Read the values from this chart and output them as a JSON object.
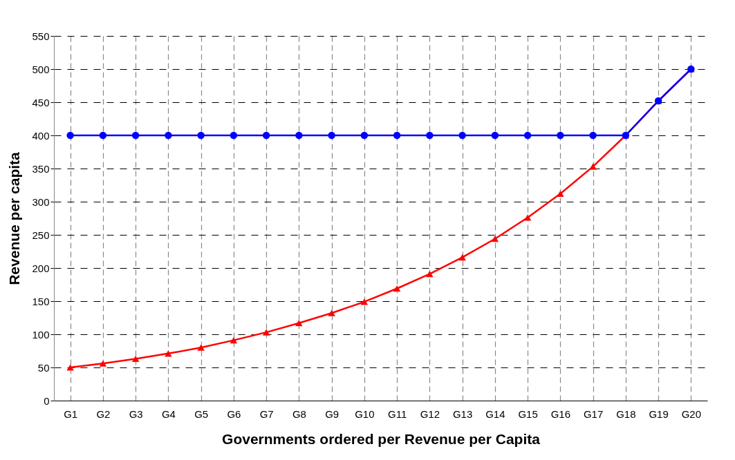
{
  "chart_data": {
    "type": "line",
    "xlabel": "Governments ordered per Revenue per Capita",
    "ylabel": "Revenue per capita",
    "categories": [
      "G1",
      "G2",
      "G3",
      "G4",
      "G5",
      "G6",
      "G7",
      "G8",
      "G9",
      "G10",
      "G11",
      "G12",
      "G13",
      "G14",
      "G15",
      "G16",
      "G17",
      "G18",
      "G19",
      "G20"
    ],
    "series": [
      {
        "color": "#ff0000",
        "marker": "triangle",
        "values": [
          50,
          56,
          63,
          71,
          80,
          91,
          103,
          117,
          132,
          149,
          169,
          191,
          216,
          244,
          276,
          312,
          353,
          400,
          452,
          500
        ]
      },
      {
        "color": "#0000ff",
        "marker": "circle",
        "values": [
          400,
          400,
          400,
          400,
          400,
          400,
          400,
          400,
          400,
          400,
          400,
          400,
          400,
          400,
          400,
          400,
          400,
          400,
          452,
          500
        ]
      }
    ],
    "ylim": [
      0,
      550
    ],
    "yticks": [
      0,
      50,
      100,
      150,
      200,
      250,
      300,
      350,
      400,
      450,
      500,
      550
    ],
    "grid": true,
    "line_style": "solid"
  }
}
